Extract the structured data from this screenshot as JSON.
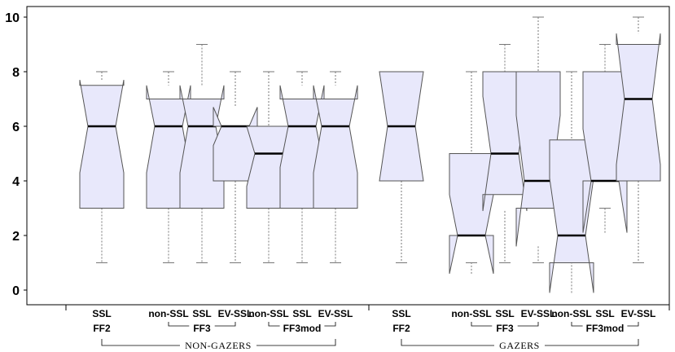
{
  "chart_data": {
    "type": "boxplot",
    "notched": true,
    "ylim": [
      -0.6,
      10.4
    ],
    "yticks": [
      0,
      2,
      4,
      6,
      8,
      10
    ],
    "colors": {
      "box_fill": "#e8e8fb",
      "box_stroke": "#555555",
      "whisker": "#777777",
      "median": "#000000",
      "axis": "#000000"
    },
    "boxes": [
      {
        "label": "SSL",
        "group": "FF2",
        "super": "NON-GAZERS",
        "min": 1,
        "q1": 3,
        "median": 6,
        "q3": 7.5,
        "max": 8,
        "notch_low": 4.3,
        "notch_high": 7.7
      },
      {
        "label": "non-SSL",
        "group": "FF3",
        "super": "NON-GAZERS",
        "min": 1,
        "q1": 3,
        "median": 6,
        "q3": 7,
        "max": 8,
        "notch_low": 4.3,
        "notch_high": 7.5
      },
      {
        "label": "SSL",
        "group": "FF3",
        "super": "NON-GAZERS",
        "min": 1,
        "q1": 3,
        "median": 6,
        "q3": 7,
        "max": 9,
        "notch_low": 4.3,
        "notch_high": 7.5
      },
      {
        "label": "EV-SSL",
        "group": "FF3",
        "super": "NON-GAZERS",
        "min": 1,
        "q1": 4,
        "median": 6,
        "q3": 6,
        "max": 8,
        "notch_low": 5.3,
        "notch_high": 6.7
      },
      {
        "label": "non-SSL",
        "group": "FF3mod",
        "super": "NON-GAZERS",
        "min": 1,
        "q1": 3,
        "median": 5,
        "q3": 6,
        "max": 8,
        "notch_low": 3.8,
        "notch_high": 6.0
      },
      {
        "label": "SSL",
        "group": "FF3mod",
        "super": "NON-GAZERS",
        "min": 1,
        "q1": 3,
        "median": 6,
        "q3": 7,
        "max": 8,
        "notch_low": 4.5,
        "notch_high": 7.5
      },
      {
        "label": "EV-SSL",
        "group": "FF3mod",
        "super": "NON-GAZERS",
        "min": 1,
        "q1": 3,
        "median": 6,
        "q3": 7,
        "max": 8,
        "notch_low": 4.3,
        "notch_high": 7.5
      },
      {
        "label": "SSL",
        "group": "FF2",
        "super": "GAZERS",
        "min": 1,
        "q1": 4,
        "median": 6,
        "q3": 8,
        "max": 8,
        "notch_low": 4.0,
        "notch_high": 8.0
      },
      {
        "label": "non-SSL",
        "group": "FF3",
        "super": "GAZERS",
        "min": 1,
        "q1": 2,
        "median": 2,
        "q3": 5,
        "max": 8,
        "notch_low": 0.6,
        "notch_high": 3.5
      },
      {
        "label": "SSL",
        "group": "FF3",
        "super": "GAZERS",
        "min": 1,
        "q1": 3.5,
        "median": 5,
        "q3": 8,
        "max": 9,
        "notch_low": 2.9,
        "notch_high": 7.1
      },
      {
        "label": "EV-SSL",
        "group": "FF3",
        "super": "GAZERS",
        "min": 1,
        "q1": 3,
        "median": 4,
        "q3": 8,
        "max": 10,
        "notch_low": 1.6,
        "notch_high": 6.4
      },
      {
        "label": "non-SSL",
        "group": "FF3mod",
        "super": "GAZERS",
        "min": 1,
        "q1": 1,
        "median": 2,
        "q3": 5.5,
        "max": 8,
        "notch_low": -0.1,
        "notch_high": 4.1
      },
      {
        "label": "SSL",
        "group": "FF3mod",
        "super": "GAZERS",
        "min": 3,
        "q1": 4,
        "median": 4,
        "q3": 8,
        "max": 9,
        "notch_low": 2.1,
        "notch_high": 5.9
      },
      {
        "label": "EV-SSL",
        "group": "FF3mod",
        "super": "GAZERS",
        "min": 1,
        "q1": 4,
        "median": 7,
        "q3": 9,
        "max": 10,
        "notch_low": 4.6,
        "notch_high": 9.4
      }
    ],
    "group_labels": [
      "FF2",
      "FF3",
      "FF3mod",
      "FF2",
      "FF3",
      "FF3mod"
    ],
    "super_labels": [
      "NON-GAZERS",
      "GAZERS"
    ]
  }
}
